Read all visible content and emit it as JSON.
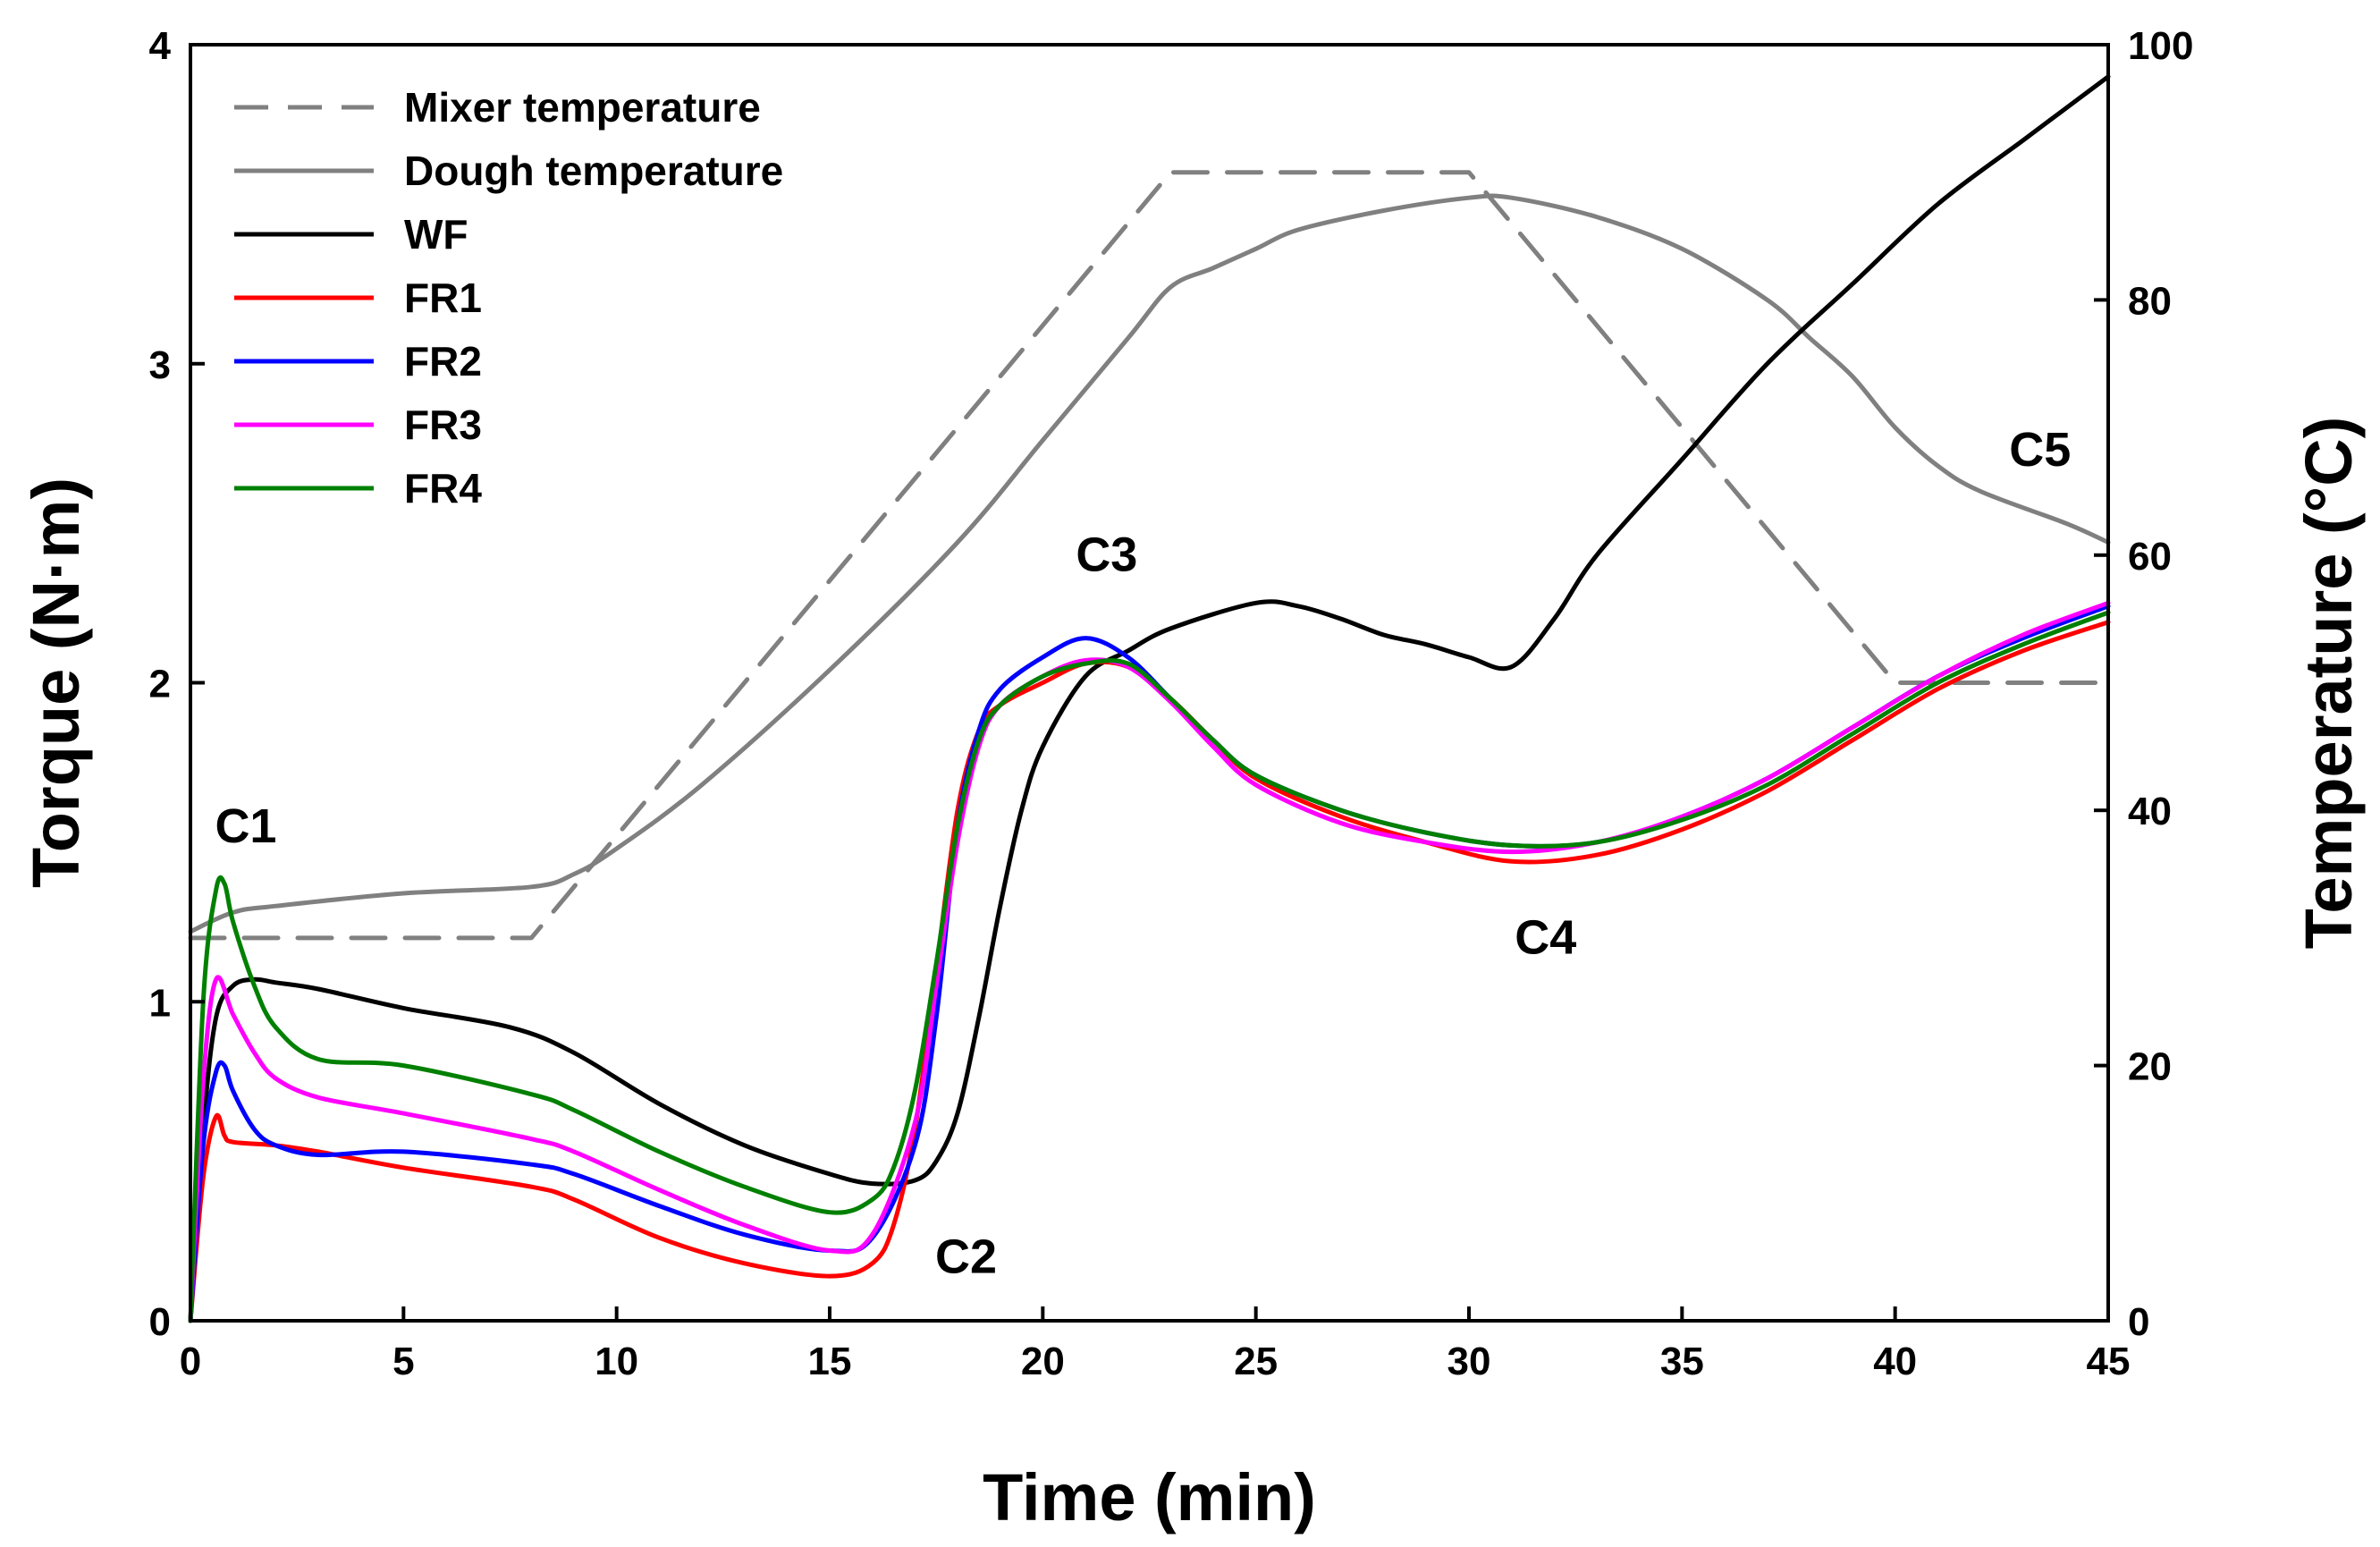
{
  "chart_data": {
    "type": "line",
    "xlabel": "Time (min)",
    "ylabel": "Torque (N·m)",
    "y2label": "Temperature (°C)",
    "xlim": [
      0,
      45
    ],
    "ylim": [
      0,
      4
    ],
    "y2lim": [
      0,
      100
    ],
    "xticks": [
      0,
      5,
      10,
      15,
      20,
      25,
      30,
      35,
      40,
      45
    ],
    "yticks": [
      0,
      1,
      2,
      3,
      4
    ],
    "y2ticks": [
      0,
      20,
      40,
      60,
      80,
      100
    ],
    "grid": false,
    "legend_position": "top-left",
    "annotations": [
      {
        "text": "C1",
        "x": 1.3,
        "y": 1.5
      },
      {
        "text": "C2",
        "x": 18.2,
        "y": 0.15
      },
      {
        "text": "C3",
        "x": 21.5,
        "y": 2.35
      },
      {
        "text": "C4",
        "x": 31.8,
        "y": 1.15
      },
      {
        "text": "C5",
        "x": 43.4,
        "y": 2.68
      }
    ],
    "series": [
      {
        "name": "Mixer temperature",
        "axis": "right",
        "color": "#808080",
        "dash": true,
        "x": [
          0,
          8,
          23,
          30,
          40,
          45
        ],
        "y": [
          30,
          30,
          90,
          90,
          50,
          50
        ]
      },
      {
        "name": "Dough temperature",
        "axis": "right",
        "color": "#808080",
        "dash": false,
        "x": [
          0,
          1,
          2,
          5,
          8,
          9,
          10,
          12,
          15,
          18,
          20,
          22,
          23,
          24,
          25,
          26,
          28,
          30,
          31,
          33,
          35,
          37,
          38,
          39,
          40,
          41,
          42,
          44,
          45
        ],
        "y": [
          30.5,
          32,
          32.5,
          33.5,
          34,
          35,
          37,
          42,
          51,
          61,
          69,
          77,
          81,
          82.5,
          84,
          85.5,
          87,
          88,
          88,
          86.5,
          84,
          80,
          77,
          74,
          70,
          67,
          65,
          62.5,
          61
        ]
      },
      {
        "name": "WF",
        "axis": "left",
        "color": "#000000",
        "dash": false,
        "x": [
          0,
          0.3,
          0.6,
          1,
          1.5,
          2,
          3,
          5,
          7.5,
          9,
          11,
          13,
          15,
          16,
          17,
          17.5,
          18,
          18.5,
          19,
          19.5,
          20,
          21,
          22,
          23,
          25,
          26,
          27,
          28,
          29,
          30,
          31,
          32,
          33,
          35,
          37,
          39,
          41,
          43,
          44,
          45
        ],
        "y": [
          0,
          0.6,
          0.95,
          1.05,
          1.07,
          1.06,
          1.04,
          0.98,
          0.92,
          0.84,
          0.68,
          0.55,
          0.46,
          0.43,
          0.44,
          0.5,
          0.65,
          0.95,
          1.3,
          1.6,
          1.8,
          2.02,
          2.1,
          2.17,
          2.25,
          2.24,
          2.2,
          2.15,
          2.12,
          2.08,
          2.05,
          2.2,
          2.4,
          2.7,
          3.0,
          3.25,
          3.5,
          3.7,
          3.8,
          3.9
        ]
      },
      {
        "name": "FR1",
        "axis": "left",
        "color": "#ff0000",
        "dash": false,
        "x": [
          0,
          0.3,
          0.6,
          0.8,
          1,
          2,
          3,
          5,
          8,
          9,
          11,
          13,
          15,
          16,
          16.5,
          17,
          17.5,
          18,
          18.5,
          19,
          20,
          21,
          22,
          23,
          24,
          25,
          27,
          29,
          31,
          33,
          35,
          37,
          39,
          41,
          43,
          45
        ],
        "y": [
          0,
          0.45,
          0.64,
          0.58,
          0.56,
          0.55,
          0.53,
          0.48,
          0.42,
          0.38,
          0.26,
          0.18,
          0.14,
          0.18,
          0.3,
          0.6,
          1.1,
          1.6,
          1.85,
          1.93,
          2.0,
          2.06,
          2.05,
          1.95,
          1.82,
          1.7,
          1.58,
          1.5,
          1.44,
          1.46,
          1.54,
          1.66,
          1.82,
          1.98,
          2.1,
          2.19
        ]
      },
      {
        "name": "FR2",
        "axis": "left",
        "color": "#0000ff",
        "dash": false,
        "x": [
          0,
          0.3,
          0.6,
          0.8,
          1,
          1.5,
          2,
          3,
          5,
          8,
          9,
          11,
          13,
          15,
          16,
          17,
          17.5,
          18,
          18.5,
          19,
          20,
          21,
          22,
          23,
          24,
          25,
          27,
          29,
          31,
          33,
          35,
          37,
          39,
          41,
          43,
          45
        ],
        "y": [
          0,
          0.55,
          0.78,
          0.8,
          0.72,
          0.6,
          0.55,
          0.52,
          0.53,
          0.49,
          0.46,
          0.36,
          0.27,
          0.22,
          0.26,
          0.55,
          0.95,
          1.55,
          1.85,
          1.98,
          2.08,
          2.14,
          2.08,
          1.95,
          1.82,
          1.71,
          1.6,
          1.53,
          1.49,
          1.5,
          1.58,
          1.7,
          1.86,
          2.02,
          2.14,
          2.24
        ]
      },
      {
        "name": "FR3",
        "axis": "left",
        "color": "#ff00ff",
        "dash": false,
        "x": [
          0,
          0.3,
          0.6,
          1,
          1.5,
          2,
          3,
          5,
          8,
          9,
          11,
          13,
          15,
          16,
          17,
          17.5,
          18,
          18.5,
          19,
          20,
          21,
          22,
          23,
          24,
          25,
          27,
          29,
          31,
          33,
          35,
          37,
          39,
          41,
          43,
          45
        ],
        "y": [
          0,
          0.75,
          1.07,
          0.96,
          0.84,
          0.76,
          0.7,
          0.65,
          0.57,
          0.53,
          0.41,
          0.3,
          0.22,
          0.27,
          0.62,
          1.05,
          1.5,
          1.8,
          1.93,
          2.02,
          2.07,
          2.05,
          1.94,
          1.8,
          1.68,
          1.56,
          1.5,
          1.47,
          1.5,
          1.58,
          1.7,
          1.86,
          2.02,
          2.15,
          2.25
        ]
      },
      {
        "name": "FR4",
        "axis": "left",
        "color": "#008000",
        "dash": false,
        "x": [
          0,
          0.3,
          0.6,
          0.8,
          1,
          1.5,
          2,
          3,
          5,
          8,
          9,
          11,
          13,
          15,
          16,
          16.5,
          17,
          17.5,
          18,
          18.5,
          19,
          20,
          21,
          22,
          23,
          24,
          25,
          27,
          29,
          31,
          33,
          35,
          37,
          39,
          41,
          43,
          45
        ],
        "y": [
          0,
          1.0,
          1.35,
          1.37,
          1.25,
          1.05,
          0.92,
          0.82,
          0.8,
          0.71,
          0.66,
          0.53,
          0.42,
          0.34,
          0.38,
          0.48,
          0.72,
          1.12,
          1.55,
          1.82,
          1.93,
          2.02,
          2.06,
          2.06,
          1.95,
          1.82,
          1.71,
          1.6,
          1.53,
          1.49,
          1.5,
          1.57,
          1.68,
          1.84,
          2.0,
          2.12,
          2.22
        ]
      }
    ]
  }
}
